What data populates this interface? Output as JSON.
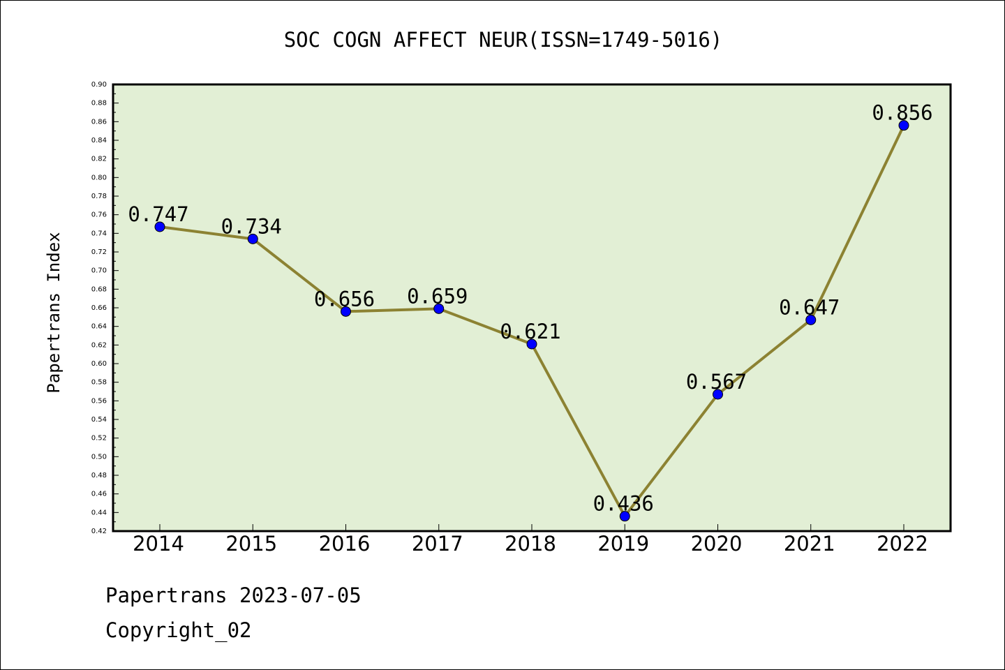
{
  "chart_data": {
    "type": "line",
    "title": "SOC COGN AFFECT NEUR(ISSN=1749-5016)",
    "ylabel": "Papertrans Index",
    "xlabel": "",
    "x": [
      "2014",
      "2015",
      "2016",
      "2017",
      "2018",
      "2019",
      "2020",
      "2021",
      "2022"
    ],
    "series": [
      {
        "values": [
          0.747,
          0.734,
          0.656,
          0.659,
          0.621,
          0.436,
          0.567,
          0.647,
          0.856
        ],
        "labels": [
          "0.747",
          "0.734",
          "0.656",
          "0.659",
          "0.621",
          "0.436",
          "0.567",
          "0.647",
          "0.856"
        ]
      }
    ],
    "ylim": [
      0.42,
      0.9
    ],
    "yticks": [
      "0.42",
      "0.44",
      "0.46",
      "0.48",
      "0.50",
      "0.52",
      "0.54",
      "0.56",
      "0.58",
      "0.60",
      "0.62",
      "0.64",
      "0.66",
      "0.68",
      "0.70",
      "0.72",
      "0.74",
      "0.76",
      "0.78",
      "0.80",
      "0.82",
      "0.84",
      "0.86",
      "0.88",
      "0.90"
    ],
    "grid": false,
    "colors": {
      "plot_background": "#e2efd5",
      "line": "#8c8232",
      "marker": "#0000ff"
    }
  },
  "footer": {
    "line1": "Papertrans 2023-07-05",
    "line2": "Copyright_02"
  }
}
